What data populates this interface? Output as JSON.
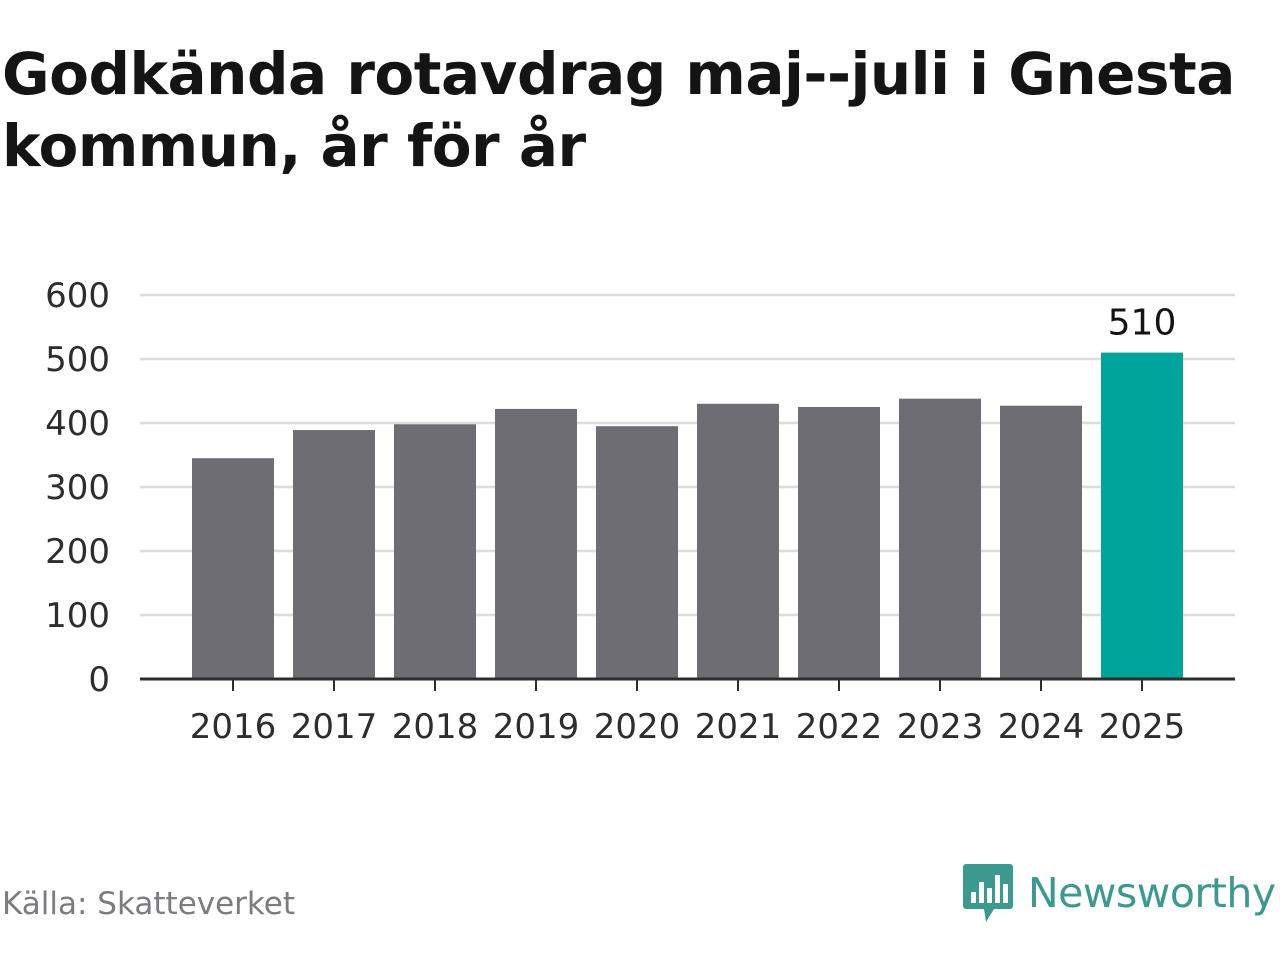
{
  "title": "Godkända rotavdrag maj--juli i Gnesta kommun, år för år",
  "source": "Källa: Skatteverket",
  "brand": {
    "name": "Newsworthy",
    "icon": "newsworthy-logo-icon",
    "color": "#3a9a8f"
  },
  "colors": {
    "bar": "#6e6d73",
    "highlight": "#00a49a",
    "grid": "#dddddd",
    "axis": "#2d2d2d"
  },
  "chart_data": {
    "type": "bar",
    "categories": [
      "2016",
      "2017",
      "2018",
      "2019",
      "2020",
      "2021",
      "2022",
      "2023",
      "2024",
      "2025"
    ],
    "values": [
      345,
      389,
      398,
      422,
      395,
      430,
      425,
      438,
      427,
      510
    ],
    "highlight_index": 9,
    "data_labels": [
      {
        "index": 9,
        "text": "510"
      }
    ],
    "ylim": [
      0,
      600
    ],
    "yticks": [
      0,
      100,
      200,
      300,
      400,
      500,
      600
    ],
    "grid": true,
    "xlabel": "",
    "ylabel": ""
  }
}
